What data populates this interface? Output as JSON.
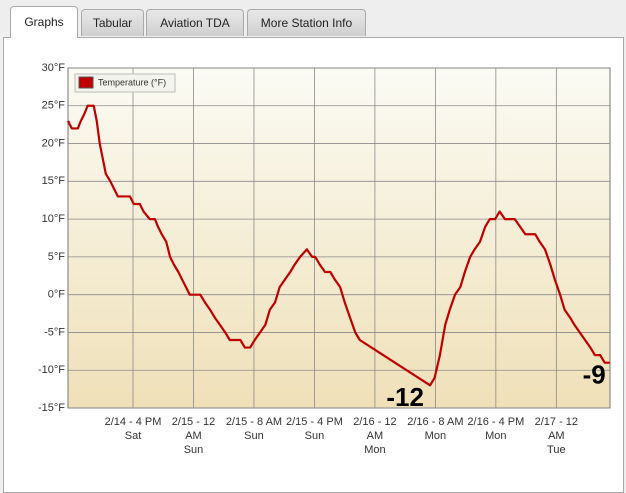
{
  "tabs": [
    "Graphs",
    "Tabular",
    "Aviation TDA",
    "More Station Info"
  ],
  "active_tab": 0,
  "chart_data": {
    "type": "line",
    "legend": "top-left",
    "grid": true,
    "xlim": [
      7.4,
      79.1
    ],
    "xticks": [
      {
        "value": 16,
        "label": "2/14 - 4 PM"
      },
      {
        "value": 24,
        "label": "2/15 - 12 AM"
      },
      {
        "value": 32,
        "label": "2/15 - 8 AM"
      },
      {
        "value": 40,
        "label": "2/15 - 4 PM"
      },
      {
        "value": 48,
        "label": "2/16 - 12 AM"
      },
      {
        "value": 56,
        "label": "2/16 - 8 AM"
      },
      {
        "value": 64,
        "label": "2/16 - 4 PM"
      },
      {
        "value": 72,
        "label": "2/17 - 12 AM"
      }
    ],
    "xtick_days": [
      "Sat",
      "Sun",
      "Sun",
      "Sun",
      "Mon",
      "Mon",
      "Mon",
      "Tue"
    ],
    "ylim": [
      -15,
      30
    ],
    "yticks": [
      {
        "value": -15,
        "label": "-15°F"
      },
      {
        "value": -10,
        "label": "-10°F"
      },
      {
        "value": -5,
        "label": "-5°F"
      },
      {
        "value": 0,
        "label": "0°F"
      },
      {
        "value": 5,
        "label": "5°F"
      },
      {
        "value": 10,
        "label": "10°F"
      },
      {
        "value": 15,
        "label": "15°F"
      },
      {
        "value": 20,
        "label": "20°F"
      },
      {
        "value": 25,
        "label": "25°F"
      },
      {
        "value": 30,
        "label": "30°F"
      }
    ],
    "x": [
      7.4,
      7.9,
      8.7,
      9.1,
      9.6,
      10.0,
      10.8,
      11.2,
      11.6,
      12.0,
      12.4,
      13.0,
      13.5,
      14.0,
      14.8,
      15.6,
      16.1,
      16.9,
      17.4,
      18.2,
      18.9,
      19.3,
      19.8,
      20.4,
      20.9,
      21.4,
      22.0,
      22.5,
      23.5,
      24.9,
      25.5,
      26.2,
      26.8,
      27.5,
      28.2,
      28.8,
      30.2,
      30.8,
      31.5,
      32.1,
      32.8,
      33.5,
      34.1,
      34.8,
      35.4,
      36.1,
      36.8,
      37.4,
      38.1,
      39.0,
      39.7,
      40.1,
      40.7,
      41.4,
      42.1,
      42.7,
      43.4,
      44.0,
      44.7,
      45.4,
      46.0,
      55.3,
      55.9,
      56.6,
      57.3,
      57.9,
      58.6,
      59.3,
      59.9,
      60.6,
      61.2,
      61.9,
      62.6,
      63.2,
      63.9,
      64.5,
      65.2,
      65.9,
      66.5,
      67.2,
      67.9,
      68.5,
      69.2,
      69.8,
      70.5,
      71.2,
      71.8,
      72.5,
      73.1,
      73.8,
      74.4,
      75.1,
      75.8,
      76.5,
      77.1,
      77.8,
      78.4,
      79.1
    ],
    "series": [
      {
        "name": "Temperature (°F)",
        "color": "#c00000",
        "values": [
          23,
          22,
          22,
          23,
          24,
          25,
          25,
          23,
          20,
          18,
          16,
          15,
          14,
          13,
          13,
          13,
          12,
          12,
          11,
          10,
          10,
          9,
          8,
          7,
          5,
          4,
          3,
          2,
          0,
          0,
          -1,
          -2,
          -3,
          -4,
          -5,
          -6,
          -6,
          -7,
          -7,
          -6,
          -5,
          -4,
          -2,
          -1,
          1,
          2,
          3,
          4,
          5,
          6,
          5,
          5,
          4,
          3,
          3,
          2,
          1,
          -1,
          -3,
          -5,
          -6,
          -12,
          -11,
          -8,
          -4,
          -2,
          0,
          1,
          3,
          5,
          6,
          7,
          9,
          10,
          10,
          11,
          10,
          10,
          10,
          9,
          8,
          8,
          8,
          7,
          6,
          4,
          2,
          0,
          -2,
          -3,
          -4,
          -5,
          -6,
          -7,
          -8,
          -8,
          -9,
          -9
        ]
      }
    ],
    "annotations": [
      {
        "text": "-12",
        "x": 52.0,
        "y": -12
      },
      {
        "text": "-9",
        "x": 77.0,
        "y": -9
      }
    ]
  }
}
